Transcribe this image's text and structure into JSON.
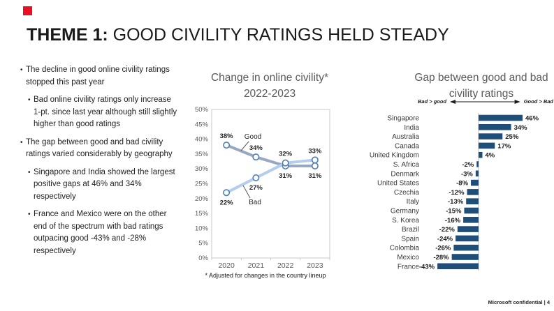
{
  "slide": {
    "title_prefix": "THEME 1:",
    "title_rest": " GOOD CIVILITY RATINGS HELD STEADY",
    "footer": "Microsoft confidential | 4",
    "accent_red": "#E81123"
  },
  "bullets": [
    {
      "level": 1,
      "text": "The decline in good online civility ratings stopped this past year"
    },
    {
      "level": 2,
      "text": "Bad online civility ratings only increase 1-pt. since last year although still slightly higher than good ratings"
    },
    {
      "level": 1,
      "text": "The gap between good and bad civility ratings varied considerably by geography"
    },
    {
      "level": 2,
      "text": "Singapore and India showed the largest positive gaps at 46% and 34% respectively"
    },
    {
      "level": 2,
      "text": "France and Mexico were on the other end of the spectrum with bad ratings outpacing good -43% and -28% respectively"
    }
  ],
  "chart_data": [
    {
      "type": "line",
      "title": "Change in online civility*",
      "subtitle": "2022-2023",
      "x": [
        "2020",
        "2021",
        "2022",
        "2023"
      ],
      "series": [
        {
          "name": "Good",
          "values": [
            38,
            34,
            31,
            31
          ],
          "labels": [
            "38%",
            "34%",
            "31%",
            "31%"
          ],
          "label_pos": [
            "above",
            "above",
            "below",
            "below"
          ],
          "color": "#98A8C2"
        },
        {
          "name": "Bad",
          "values": [
            22,
            27,
            32,
            33
          ],
          "labels": [
            "22%",
            "27%",
            "32%",
            "33%"
          ],
          "label_pos": [
            "below",
            "below",
            "above",
            "above"
          ],
          "color": "#B3CDEC"
        }
      ],
      "ylim": [
        0,
        50
      ],
      "ytick_step": 5,
      "ytick_labels": [
        "0%",
        "5%",
        "10%",
        "15%",
        "20%",
        "25%",
        "30%",
        "35%",
        "40%",
        "45%",
        "50%"
      ],
      "marker": "open-circle",
      "marker_stroke": "#4E7DB5",
      "grid": false,
      "footnote": "* Adjusted for changes in the country lineup"
    },
    {
      "type": "bar",
      "orientation": "horizontal",
      "title": "Gap between good and bad",
      "subtitle": "civility ratings",
      "left_arrow_label": "Bad > good",
      "right_arrow_label": "Good > Bad",
      "categories": [
        "Singapore",
        "India",
        "Australia",
        "Canada",
        "United Kingdom",
        "S. Africa",
        "Denmark",
        "United States",
        "Czechia",
        "Italy",
        "Germany",
        "S. Korea",
        "Brazil",
        "Spain",
        "Colombia",
        "Mexico",
        "France"
      ],
      "values": [
        46,
        34,
        25,
        17,
        4,
        -2,
        -3,
        -8,
        -12,
        -13,
        -15,
        -16,
        -22,
        -24,
        -26,
        -28,
        -43
      ],
      "labels": [
        "46%",
        "34%",
        "25%",
        "17%",
        "4%",
        "-2%",
        "-3%",
        "-8%",
        "-12%",
        "-13%",
        "-15%",
        "-16%",
        "-22%",
        "-24%",
        "-26%",
        "-28%",
        "-43%"
      ],
      "bar_color": "#1F4E79",
      "xlim": [
        -50,
        50
      ]
    }
  ]
}
